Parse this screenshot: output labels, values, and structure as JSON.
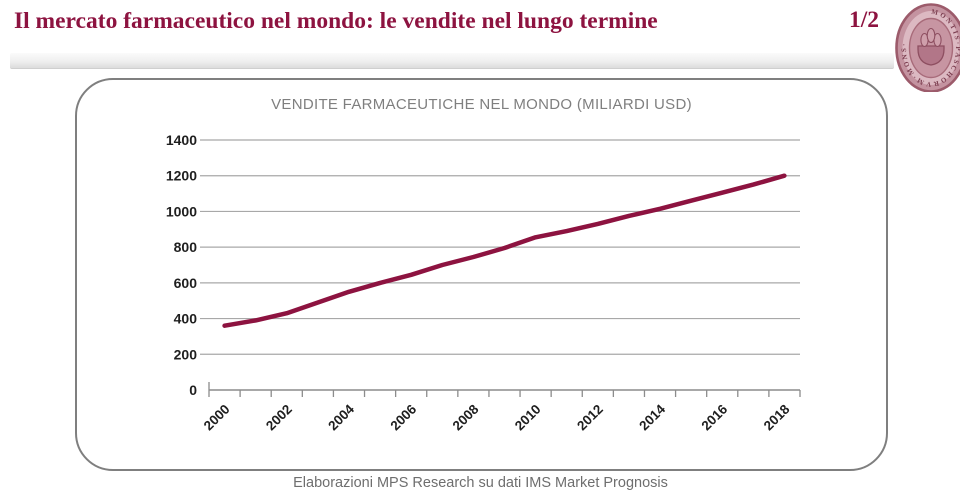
{
  "header": {
    "title": "Il mercato farmaceutico nel mondo: le vendite nel lungo termine",
    "page_number": "1/2",
    "accent_color": "#8d1340",
    "logo": {
      "name": "monte-dei-paschi-seal",
      "ring_text": "MONTIS·PASCHORVM·MONS·"
    }
  },
  "chart_data": {
    "type": "line",
    "title": "VENDITE FARMACEUTICHE NEL MONDO (MILIARDI USD)",
    "x": [
      2000,
      2001,
      2002,
      2003,
      2004,
      2005,
      2006,
      2007,
      2008,
      2009,
      2010,
      2011,
      2012,
      2013,
      2014,
      2015,
      2016,
      2017,
      2018
    ],
    "series": [
      {
        "name": "Vendite farmaceutiche nel mondo",
        "values": [
          360,
          390,
          430,
          490,
          550,
          600,
          645,
          700,
          745,
          795,
          855,
          890,
          930,
          975,
          1015,
          1060,
          1105,
          1150,
          1200
        ]
      }
    ],
    "ylim": [
      0,
      1400
    ],
    "yticks": [
      0,
      200,
      400,
      600,
      800,
      1000,
      1200,
      1400
    ],
    "x_label_every": 2,
    "grid": true,
    "legend": "none",
    "line_color": "#8d1340",
    "grid_color": "#a8a8a8",
    "axis_color": "#8c8c8c",
    "tick_label_color": "#1f1f1f"
  },
  "footer": {
    "caption": "Elaborazioni MPS Research su dati IMS Market Prognosis"
  }
}
